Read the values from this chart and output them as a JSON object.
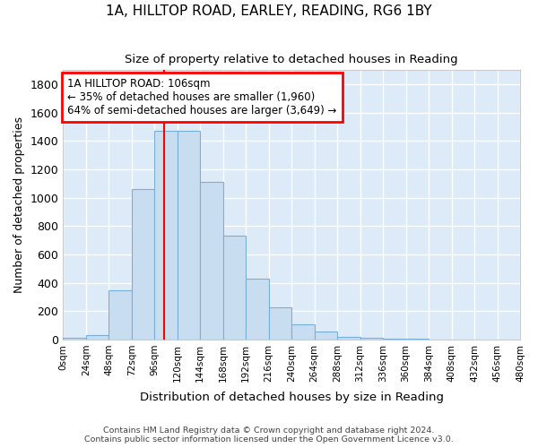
{
  "title": "1A, HILLTOP ROAD, EARLEY, READING, RG6 1BY",
  "subtitle": "Size of property relative to detached houses in Reading",
  "xlabel": "Distribution of detached houses by size in Reading",
  "ylabel": "Number of detached properties",
  "bar_color": "#c8ddf0",
  "bar_edge_color": "#7ab0d8",
  "plot_bg_color": "#ddeaf7",
  "fig_bg_color": "#ffffff",
  "grid_color": "#ffffff",
  "bin_edges": [
    0,
    24,
    48,
    72,
    96,
    120,
    144,
    168,
    192,
    216,
    240,
    264,
    288,
    312,
    336,
    360,
    384,
    408,
    432,
    456,
    480
  ],
  "bin_labels": [
    "0sqm",
    "24sqm",
    "48sqm",
    "72sqm",
    "96sqm",
    "120sqm",
    "144sqm",
    "168sqm",
    "192sqm",
    "216sqm",
    "240sqm",
    "264sqm",
    "288sqm",
    "312sqm",
    "336sqm",
    "360sqm",
    "384sqm",
    "408sqm",
    "432sqm",
    "456sqm",
    "480sqm"
  ],
  "bar_heights": [
    10,
    30,
    350,
    1060,
    1470,
    1470,
    1110,
    730,
    430,
    230,
    110,
    55,
    20,
    10,
    5,
    3,
    2,
    1,
    1,
    1
  ],
  "vline_x": 106,
  "annotation_label": "1A HILLTOP ROAD: 106sqm",
  "annotation_line1": "← 35% of detached houses are smaller (1,960)",
  "annotation_line2": "64% of semi-detached houses are larger (3,649) →",
  "ylim": [
    0,
    1900
  ],
  "yticks": [
    0,
    200,
    400,
    600,
    800,
    1000,
    1200,
    1400,
    1600,
    1800
  ],
  "footnote1": "Contains HM Land Registry data © Crown copyright and database right 2024.",
  "footnote2": "Contains public sector information licensed under the Open Government Licence v3.0."
}
